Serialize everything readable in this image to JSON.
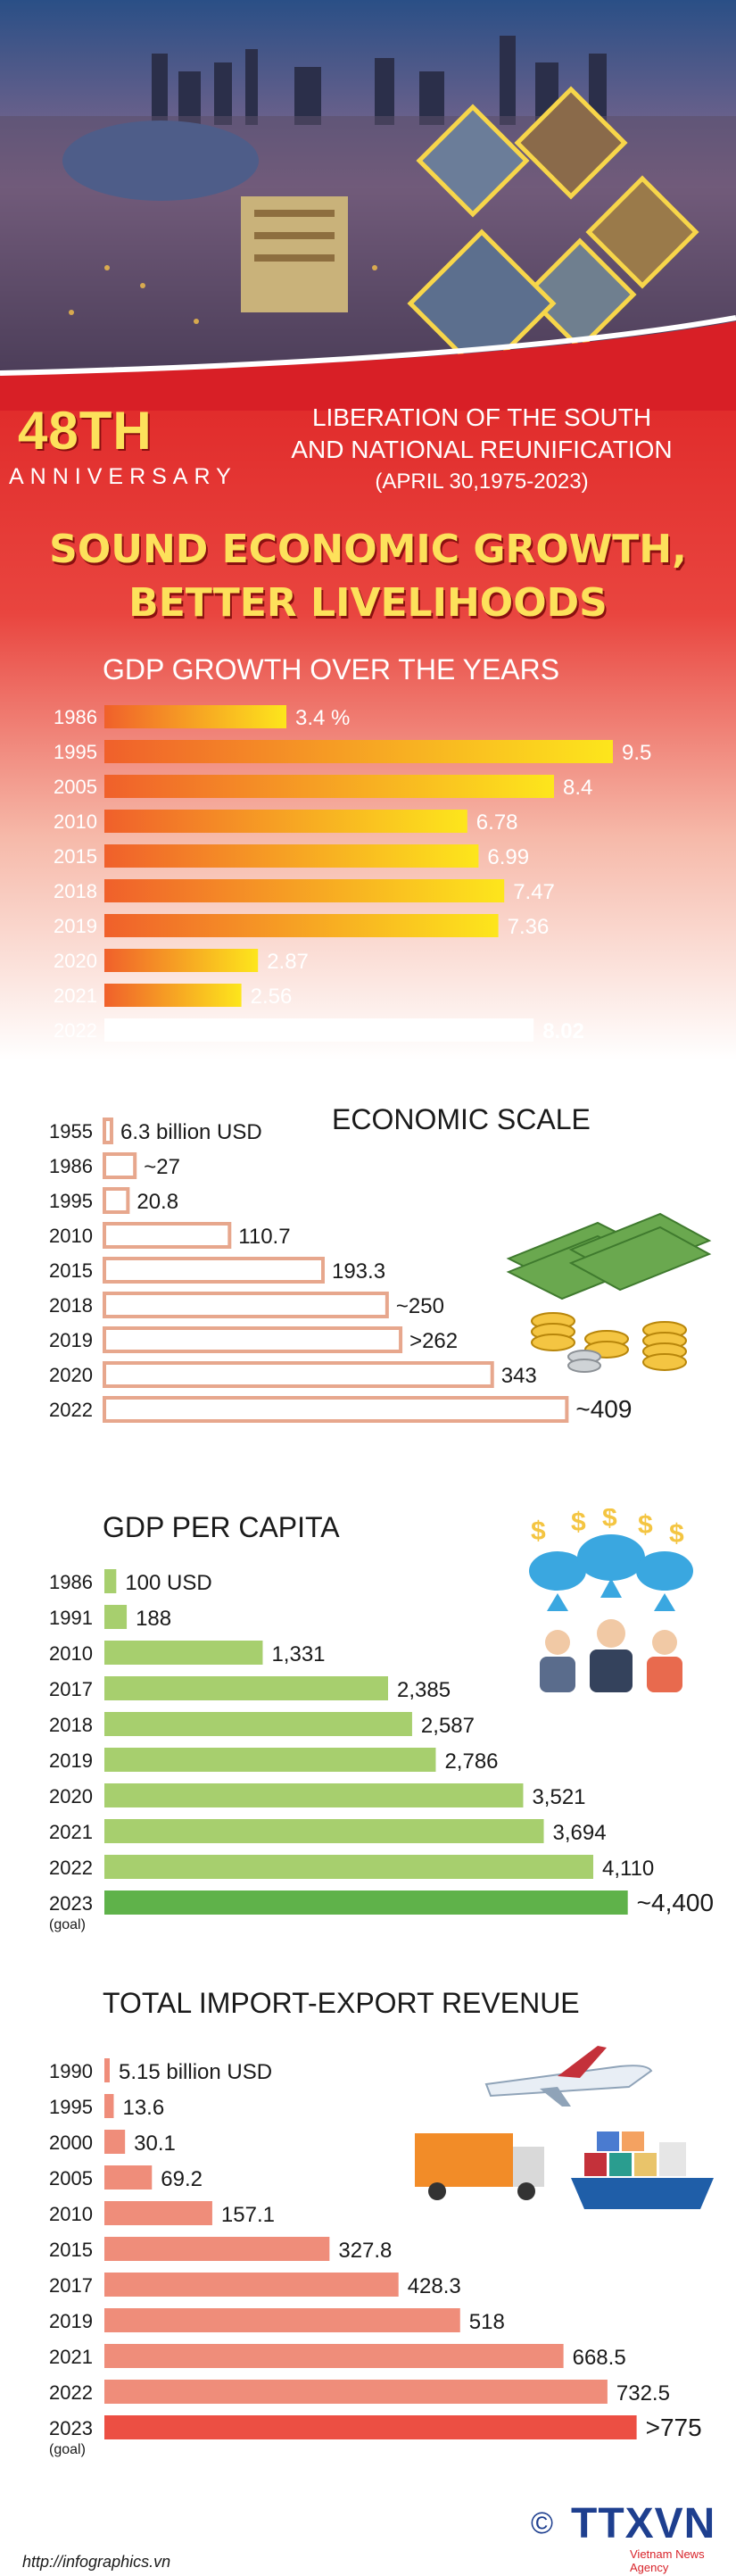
{
  "header": {
    "anniversary_number": "48TH",
    "anniversary_word": "ANNIVERSARY",
    "event_line1": "LIBERATION OF THE SOUTH",
    "event_line2": "AND NATIONAL REUNIFICATION",
    "event_line3": "(APRIL 30,1975-2023)",
    "headline_line1": "SOUND ECONOMIC GROWTH,",
    "headline_line2": "BETTER LIVELIHOODS"
  },
  "footer": {
    "url": "http://infographics.vn",
    "brand": "TTXVN",
    "copyright_symbol": "©",
    "brand_sub": "Vietnam News Agency"
  },
  "colors": {
    "red_background": "#d81f26",
    "gold_text": "#fde15b",
    "gdp_bar_start": "#f0602b",
    "gdp_bar_end": "#fde61c",
    "capita_bar": "#a7cf6e",
    "capita_goal_bar": "#5fb24a",
    "trade_bar": "#ef8d7a",
    "trade_goal_bar": "#ec4f43",
    "scale_bar_border": "#e7a78d"
  },
  "chart_data": [
    {
      "type": "bar",
      "orientation": "horizontal",
      "title": "GDP GROWTH OVER THE YEARS",
      "categories": [
        "1986",
        "1995",
        "2005",
        "2010",
        "2015",
        "2018",
        "2019",
        "2020",
        "2021",
        "2022"
      ],
      "values": [
        3.4,
        9.5,
        8.4,
        6.78,
        6.99,
        7.47,
        7.36,
        2.87,
        2.56,
        8.02
      ],
      "labels": [
        "3.4 %",
        "9.5",
        "8.4",
        "6.78",
        "6.99",
        "7.47",
        "7.36",
        "2.87",
        "2.56",
        "8.02"
      ],
      "xlim": [
        0,
        10
      ],
      "highlight_category": "2022"
    },
    {
      "type": "bar",
      "orientation": "horizontal",
      "title": "ECONOMIC SCALE",
      "categories": [
        "1955",
        "1986",
        "1995",
        "2010",
        "2015",
        "2018",
        "2019",
        "2020",
        "2022"
      ],
      "values": [
        6.3,
        27,
        20.8,
        110.7,
        193.3,
        250,
        262,
        343,
        409
      ],
      "labels": [
        "6.3 billion USD",
        "~27",
        "20.8",
        "110.7",
        "193.3",
        "~250",
        ">262",
        "343",
        "~409"
      ],
      "xlim": [
        0,
        430
      ]
    },
    {
      "type": "bar",
      "orientation": "horizontal",
      "title": "GDP PER CAPITA",
      "categories": [
        "1986",
        "1991",
        "2010",
        "2017",
        "2018",
        "2019",
        "2020",
        "2021",
        "2022",
        "2023"
      ],
      "category_notes": [
        "",
        "",
        "",
        "",
        "",
        "",
        "",
        "",
        "",
        "(goal)"
      ],
      "values": [
        100,
        188,
        1331,
        2385,
        2587,
        2786,
        3521,
        3694,
        4110,
        4400
      ],
      "labels": [
        "100 USD",
        "188",
        "1,331",
        "2,385",
        "2,587",
        "2,786",
        "3,521",
        "3,694",
        "4,110",
        "~4,400"
      ],
      "xlim": [
        0,
        4650
      ]
    },
    {
      "type": "bar",
      "orientation": "horizontal",
      "title": "TOTAL IMPORT-EXPORT REVENUE",
      "categories": [
        "1990",
        "1995",
        "2000",
        "2005",
        "2010",
        "2015",
        "2017",
        "2019",
        "2021",
        "2022",
        "2023"
      ],
      "category_notes": [
        "",
        "",
        "",
        "",
        "",
        "",
        "",
        "",
        "",
        "",
        "(goal)"
      ],
      "values": [
        5.15,
        13.6,
        30.1,
        69.2,
        157.1,
        327.8,
        428.3,
        518,
        668.5,
        732.5,
        775
      ],
      "labels": [
        "5.15 billion USD",
        "13.6",
        "30.1",
        "69.2",
        "157.1",
        "327.8",
        "428.3",
        "518",
        "668.5",
        "732.5",
        ">775"
      ],
      "xlim": [
        0,
        795
      ]
    }
  ]
}
